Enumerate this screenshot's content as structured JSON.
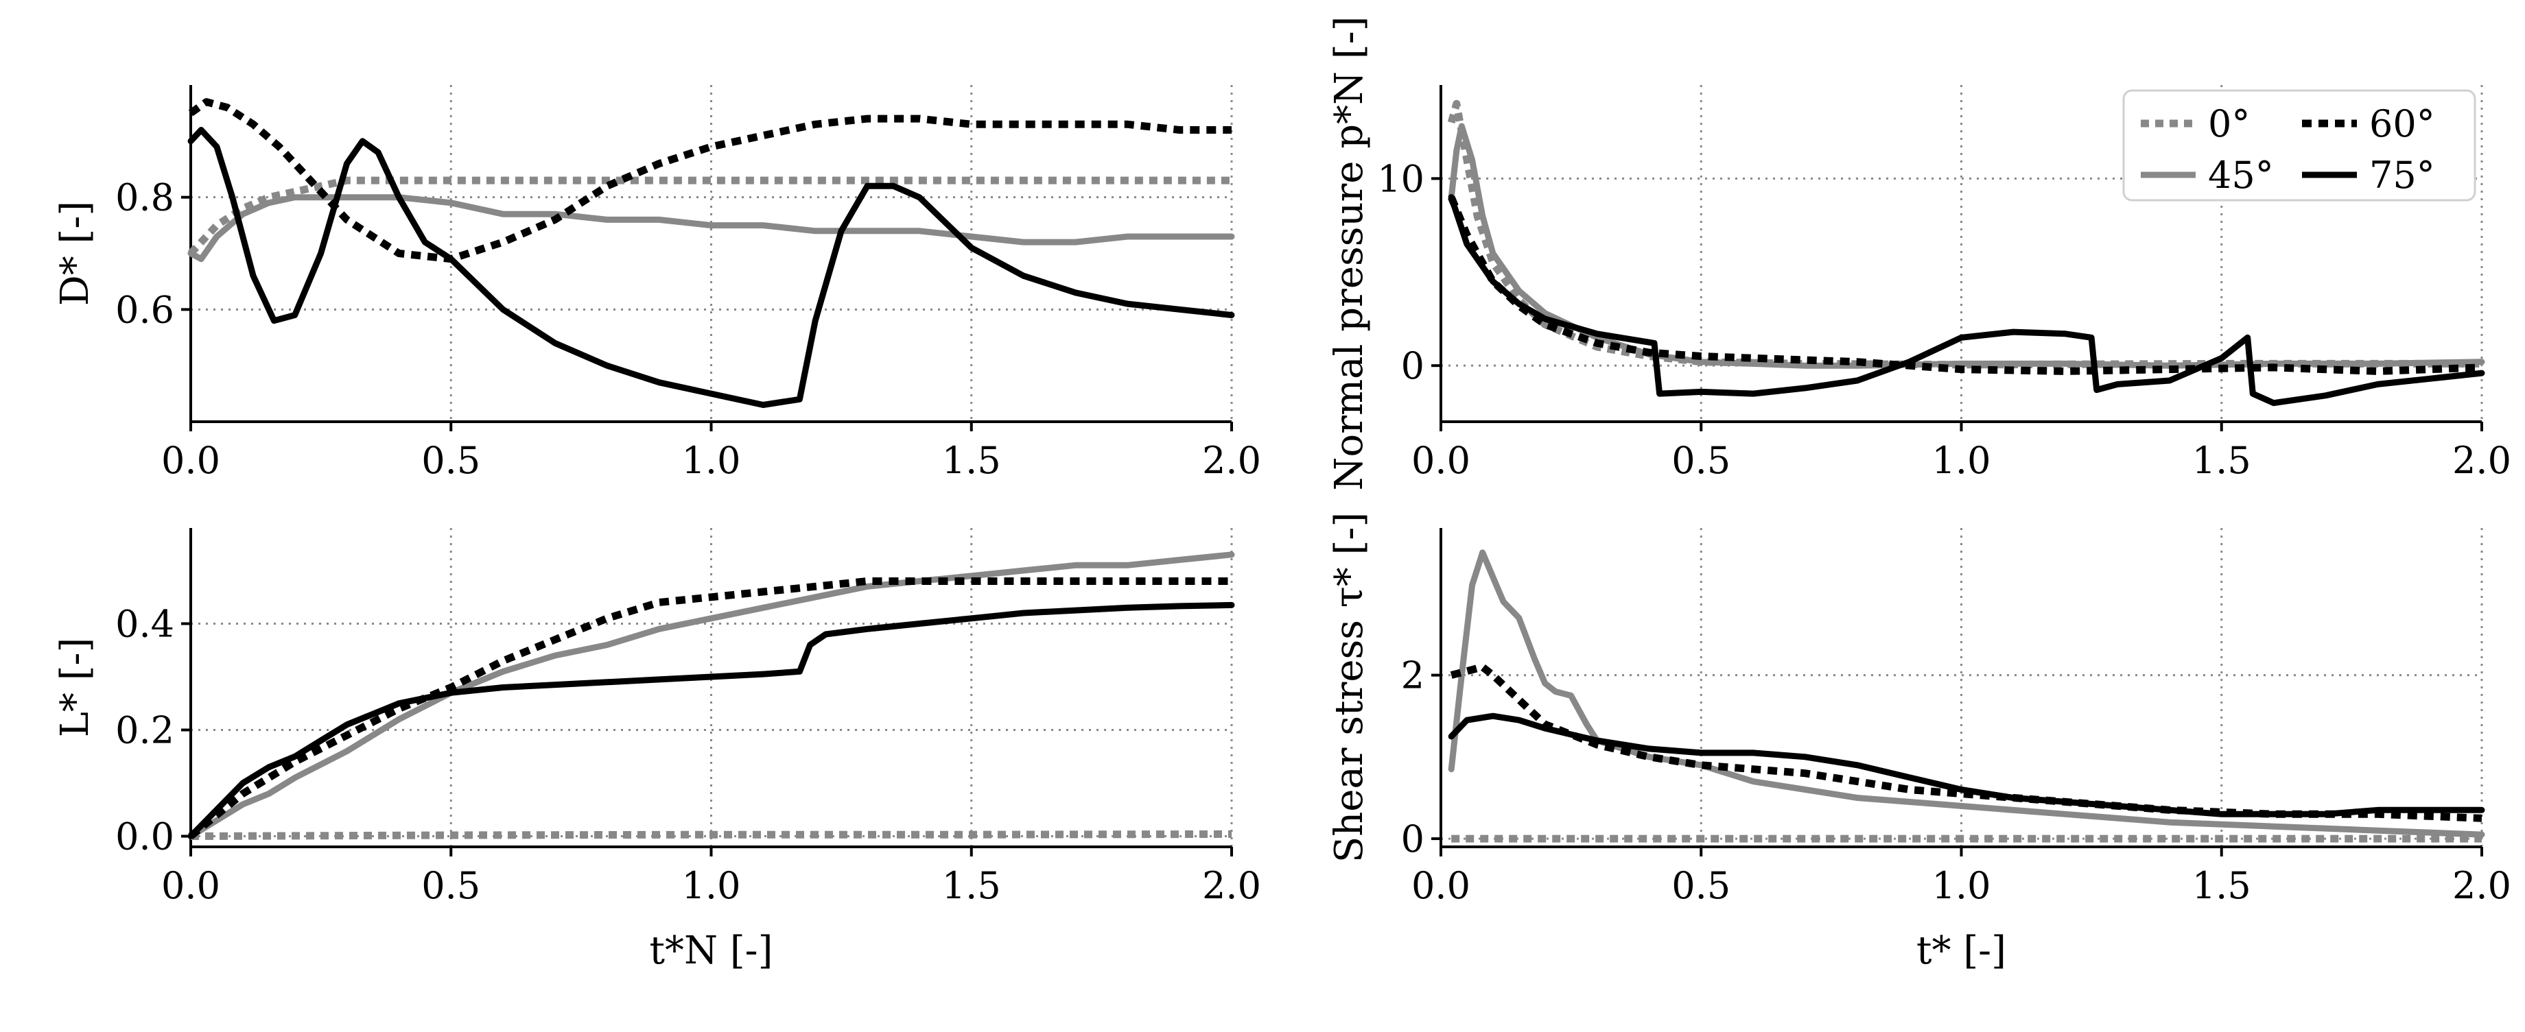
{
  "chart_data": [
    {
      "id": "D",
      "type": "line",
      "ylabel": "D* [-]",
      "xlabel": "",
      "xlim": [
        0,
        2
      ],
      "ylim": [
        0.4,
        1.0
      ],
      "xticks": [
        "0.0",
        "0.5",
        "1.0",
        "1.5",
        "2.0"
      ],
      "yticks": [
        {
          "value": 0.6,
          "label": "0.6"
        },
        {
          "value": 0.8,
          "label": "0.8"
        }
      ],
      "series": [
        {
          "name": "0°",
          "color": "#888888",
          "style": "dotted",
          "x": [
            0.0,
            0.02,
            0.05,
            0.1,
            0.15,
            0.2,
            0.25,
            0.3,
            0.4,
            0.5,
            0.7,
            1.0,
            1.5,
            2.0
          ],
          "y": [
            0.7,
            0.72,
            0.75,
            0.78,
            0.8,
            0.81,
            0.82,
            0.83,
            0.83,
            0.83,
            0.83,
            0.83,
            0.83,
            0.83
          ]
        },
        {
          "name": "45°",
          "color": "#888888",
          "style": "solid",
          "x": [
            0.0,
            0.02,
            0.05,
            0.1,
            0.15,
            0.2,
            0.25,
            0.3,
            0.4,
            0.5,
            0.6,
            0.7,
            0.8,
            0.9,
            1.0,
            1.1,
            1.2,
            1.3,
            1.4,
            1.5,
            1.6,
            1.7,
            1.8,
            1.9,
            2.0
          ],
          "y": [
            0.7,
            0.69,
            0.73,
            0.77,
            0.79,
            0.8,
            0.8,
            0.8,
            0.8,
            0.79,
            0.77,
            0.77,
            0.76,
            0.76,
            0.75,
            0.75,
            0.74,
            0.74,
            0.74,
            0.73,
            0.72,
            0.72,
            0.73,
            0.73,
            0.73
          ]
        },
        {
          "name": "60°",
          "color": "#000000",
          "style": "dotted",
          "x": [
            0.0,
            0.03,
            0.07,
            0.12,
            0.17,
            0.22,
            0.3,
            0.4,
            0.5,
            0.6,
            0.7,
            0.8,
            0.9,
            1.0,
            1.1,
            1.2,
            1.3,
            1.4,
            1.5,
            1.6,
            1.7,
            1.8,
            1.9,
            2.0
          ],
          "y": [
            0.95,
            0.97,
            0.96,
            0.93,
            0.89,
            0.84,
            0.76,
            0.7,
            0.69,
            0.72,
            0.76,
            0.82,
            0.86,
            0.89,
            0.91,
            0.93,
            0.94,
            0.94,
            0.93,
            0.93,
            0.93,
            0.93,
            0.92,
            0.92
          ]
        },
        {
          "name": "75°",
          "color": "#000000",
          "style": "solid",
          "x": [
            0.0,
            0.02,
            0.05,
            0.08,
            0.12,
            0.16,
            0.2,
            0.25,
            0.3,
            0.33,
            0.36,
            0.4,
            0.45,
            0.5,
            0.6,
            0.7,
            0.8,
            0.9,
            1.0,
            1.1,
            1.17,
            1.2,
            1.25,
            1.3,
            1.35,
            1.4,
            1.5,
            1.6,
            1.7,
            1.8,
            1.9,
            2.0
          ],
          "y": [
            0.9,
            0.92,
            0.89,
            0.8,
            0.66,
            0.58,
            0.59,
            0.7,
            0.86,
            0.9,
            0.88,
            0.8,
            0.72,
            0.69,
            0.6,
            0.54,
            0.5,
            0.47,
            0.45,
            0.43,
            0.44,
            0.58,
            0.74,
            0.82,
            0.82,
            0.8,
            0.71,
            0.66,
            0.63,
            0.61,
            0.6,
            0.59
          ]
        }
      ]
    },
    {
      "id": "L",
      "type": "line",
      "ylabel": "L* [-]",
      "xlabel": "t*N [-]",
      "xlim": [
        0,
        2
      ],
      "ylim": [
        -0.02,
        0.58
      ],
      "xticks": [
        "0.0",
        "0.5",
        "1.0",
        "1.5",
        "2.0"
      ],
      "yticks": [
        {
          "value": 0.0,
          "label": "0.0"
        },
        {
          "value": 0.2,
          "label": "0.2"
        },
        {
          "value": 0.4,
          "label": "0.4"
        }
      ],
      "series": [
        {
          "name": "0°",
          "color": "#888888",
          "style": "dotted",
          "x": [
            0.0,
            0.5,
            1.0,
            1.5,
            2.0
          ],
          "y": [
            0.0,
            0.002,
            0.003,
            0.003,
            0.004
          ]
        },
        {
          "name": "45°",
          "color": "#888888",
          "style": "solid",
          "x": [
            0.0,
            0.05,
            0.1,
            0.15,
            0.2,
            0.3,
            0.4,
            0.5,
            0.6,
            0.7,
            0.8,
            0.9,
            1.0,
            1.1,
            1.2,
            1.3,
            1.4,
            1.5,
            1.6,
            1.7,
            1.8,
            1.9,
            2.0
          ],
          "y": [
            0.0,
            0.03,
            0.06,
            0.08,
            0.11,
            0.16,
            0.22,
            0.27,
            0.31,
            0.34,
            0.36,
            0.39,
            0.41,
            0.43,
            0.45,
            0.47,
            0.48,
            0.49,
            0.5,
            0.51,
            0.51,
            0.52,
            0.53
          ]
        },
        {
          "name": "60°",
          "color": "#000000",
          "style": "dotted",
          "x": [
            0.0,
            0.05,
            0.1,
            0.2,
            0.3,
            0.4,
            0.5,
            0.6,
            0.7,
            0.8,
            0.9,
            1.0,
            1.1,
            1.2,
            1.3,
            1.4,
            1.5,
            1.6,
            1.7,
            1.8,
            1.9,
            2.0
          ],
          "y": [
            0.0,
            0.04,
            0.08,
            0.14,
            0.19,
            0.24,
            0.28,
            0.33,
            0.37,
            0.41,
            0.44,
            0.45,
            0.46,
            0.47,
            0.48,
            0.48,
            0.48,
            0.48,
            0.48,
            0.48,
            0.48,
            0.48
          ]
        },
        {
          "name": "75°",
          "color": "#000000",
          "style": "solid",
          "x": [
            0.0,
            0.05,
            0.1,
            0.15,
            0.2,
            0.25,
            0.3,
            0.35,
            0.4,
            0.5,
            0.6,
            0.7,
            0.8,
            0.9,
            1.0,
            1.1,
            1.17,
            1.19,
            1.22,
            1.3,
            1.4,
            1.5,
            1.6,
            1.7,
            1.8,
            1.9,
            2.0
          ],
          "y": [
            0.0,
            0.05,
            0.1,
            0.13,
            0.15,
            0.18,
            0.21,
            0.23,
            0.25,
            0.27,
            0.28,
            0.285,
            0.29,
            0.295,
            0.3,
            0.305,
            0.31,
            0.36,
            0.38,
            0.39,
            0.4,
            0.41,
            0.42,
            0.425,
            0.43,
            0.433,
            0.435
          ]
        }
      ]
    },
    {
      "id": "P",
      "type": "line",
      "ylabel": "Normal pressure p*N [-]",
      "xlabel": "",
      "xlim": [
        0,
        2
      ],
      "ylim": [
        -3,
        15
      ],
      "xticks": [
        "0.0",
        "0.5",
        "1.0",
        "1.5",
        "2.0"
      ],
      "yticks": [
        {
          "value": 0,
          "label": "0"
        },
        {
          "value": 10,
          "label": "10"
        }
      ],
      "series": [
        {
          "name": "0°",
          "color": "#888888",
          "style": "dotted",
          "x": [
            0.02,
            0.03,
            0.05,
            0.07,
            0.1,
            0.15,
            0.2,
            0.3,
            0.4,
            0.5,
            0.7,
            1.0,
            1.5,
            2.0
          ],
          "y": [
            13.0,
            14.0,
            11.0,
            8.0,
            5.5,
            3.5,
            2.2,
            1.0,
            0.5,
            0.2,
            0.1,
            0.05,
            0.1,
            0.1
          ]
        },
        {
          "name": "45°",
          "color": "#888888",
          "style": "solid",
          "x": [
            0.02,
            0.03,
            0.04,
            0.06,
            0.08,
            0.1,
            0.15,
            0.2,
            0.3,
            0.4,
            0.5,
            0.6,
            0.7,
            0.8,
            1.0,
            1.2,
            1.4,
            1.6,
            1.8,
            2.0
          ],
          "y": [
            9.0,
            11.5,
            12.8,
            11.0,
            8.0,
            6.0,
            4.0,
            2.8,
            1.5,
            0.6,
            0.2,
            0.1,
            0.0,
            0.0,
            0.1,
            0.1,
            0.0,
            0.1,
            0.1,
            0.2
          ]
        },
        {
          "name": "60°",
          "color": "#000000",
          "style": "dotted",
          "x": [
            0.02,
            0.05,
            0.1,
            0.15,
            0.2,
            0.3,
            0.4,
            0.5,
            0.6,
            0.8,
            1.0,
            1.2,
            1.4,
            1.6,
            1.8,
            2.0
          ],
          "y": [
            9.0,
            7.0,
            4.5,
            3.2,
            2.2,
            1.2,
            0.7,
            0.5,
            0.4,
            0.2,
            -0.2,
            -0.3,
            -0.2,
            -0.1,
            -0.3,
            -0.1
          ]
        },
        {
          "name": "75°",
          "color": "#000000",
          "style": "solid",
          "x": [
            0.02,
            0.05,
            0.1,
            0.15,
            0.2,
            0.3,
            0.41,
            0.42,
            0.5,
            0.6,
            0.7,
            0.8,
            0.9,
            1.0,
            1.1,
            1.2,
            1.25,
            1.26,
            1.3,
            1.4,
            1.5,
            1.55,
            1.56,
            1.6,
            1.7,
            1.8,
            1.9,
            2.0
          ],
          "y": [
            9.0,
            6.5,
            4.5,
            3.3,
            2.5,
            1.7,
            1.2,
            -1.5,
            -1.4,
            -1.5,
            -1.2,
            -0.8,
            0.2,
            1.5,
            1.8,
            1.7,
            1.5,
            -1.3,
            -1.0,
            -0.8,
            0.4,
            1.5,
            -1.5,
            -2.0,
            -1.6,
            -1.0,
            -0.7,
            -0.4
          ]
        }
      ]
    },
    {
      "id": "S",
      "type": "line",
      "ylabel": "Shear stress τ* [-]",
      "xlabel": "t* [-]",
      "xlim": [
        0,
        2
      ],
      "ylim": [
        -0.1,
        3.8
      ],
      "xticks": [
        "0.0",
        "0.5",
        "1.0",
        "1.5",
        "2.0"
      ],
      "yticks": [
        {
          "value": 0,
          "label": "0"
        },
        {
          "value": 2,
          "label": "2"
        }
      ],
      "series": [
        {
          "name": "0°",
          "color": "#888888",
          "style": "dotted",
          "x": [
            0.02,
            0.5,
            1.0,
            1.5,
            2.0
          ],
          "y": [
            0.0,
            0.0,
            0.0,
            0.0,
            0.0
          ]
        },
        {
          "name": "45°",
          "color": "#888888",
          "style": "solid",
          "x": [
            0.02,
            0.04,
            0.06,
            0.08,
            0.1,
            0.12,
            0.15,
            0.18,
            0.2,
            0.22,
            0.25,
            0.28,
            0.3,
            0.35,
            0.4,
            0.5,
            0.6,
            0.7,
            0.8,
            0.9,
            1.0,
            1.2,
            1.4,
            1.6,
            1.8,
            2.0
          ],
          "y": [
            0.85,
            2.0,
            3.1,
            3.5,
            3.2,
            2.9,
            2.7,
            2.2,
            1.9,
            1.8,
            1.75,
            1.4,
            1.2,
            1.1,
            1.0,
            0.9,
            0.7,
            0.6,
            0.5,
            0.45,
            0.4,
            0.3,
            0.2,
            0.15,
            0.1,
            0.05
          ]
        },
        {
          "name": "60°",
          "color": "#000000",
          "style": "dotted",
          "x": [
            0.02,
            0.05,
            0.08,
            0.1,
            0.15,
            0.2,
            0.3,
            0.4,
            0.5,
            0.6,
            0.7,
            0.8,
            0.9,
            1.0,
            1.2,
            1.4,
            1.6,
            1.8,
            2.0
          ],
          "y": [
            2.0,
            2.05,
            2.1,
            2.0,
            1.7,
            1.4,
            1.15,
            1.0,
            0.9,
            0.85,
            0.8,
            0.7,
            0.6,
            0.55,
            0.45,
            0.35,
            0.3,
            0.3,
            0.25
          ]
        },
        {
          "name": "75°",
          "color": "#000000",
          "style": "solid",
          "x": [
            0.02,
            0.05,
            0.1,
            0.15,
            0.2,
            0.3,
            0.4,
            0.5,
            0.6,
            0.7,
            0.8,
            0.9,
            1.0,
            1.1,
            1.2,
            1.3,
            1.4,
            1.5,
            1.6,
            1.7,
            1.8,
            1.9,
            2.0
          ],
          "y": [
            1.25,
            1.45,
            1.5,
            1.45,
            1.35,
            1.2,
            1.1,
            1.05,
            1.05,
            1.0,
            0.9,
            0.75,
            0.6,
            0.5,
            0.45,
            0.4,
            0.35,
            0.3,
            0.3,
            0.3,
            0.35,
            0.35,
            0.35
          ]
        }
      ]
    }
  ],
  "legend": {
    "position": "top-right",
    "entries": [
      {
        "label": "0°",
        "color": "#888888",
        "style": "dotted"
      },
      {
        "label": "60°",
        "color": "#000000",
        "style": "dotted"
      },
      {
        "label": "45°",
        "color": "#888888",
        "style": "solid"
      },
      {
        "label": "75°",
        "color": "#000000",
        "style": "solid"
      }
    ]
  }
}
